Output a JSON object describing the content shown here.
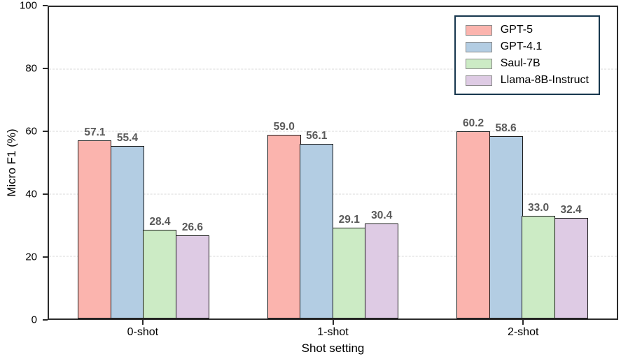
{
  "chart_data": {
    "type": "bar",
    "title": "",
    "xlabel": "Shot setting",
    "ylabel": "Micro F1 (%)",
    "ylim": [
      0,
      100
    ],
    "yticks": [
      0,
      20,
      40,
      60,
      80,
      100
    ],
    "grid": "horizontal-dashed",
    "legend_position": "top-right",
    "bar_value_labels": true,
    "categories": [
      "0-shot",
      "1-shot",
      "2-shot"
    ],
    "series": [
      {
        "name": "GPT-5",
        "color": "#fbb4ae",
        "values": [
          57.1,
          59.0,
          60.2
        ]
      },
      {
        "name": "GPT-4.1",
        "color": "#b3cde3",
        "values": [
          55.4,
          56.1,
          58.6
        ]
      },
      {
        "name": "Saul-7B",
        "color": "#ccebc5",
        "values": [
          28.4,
          29.1,
          33.0
        ]
      },
      {
        "name": "Llama-8B-Instruct",
        "color": "#decbe4",
        "values": [
          26.6,
          30.4,
          32.4
        ]
      }
    ]
  },
  "style": {
    "bar_edge_color": "#1a1a1a",
    "value_label_color": "#595959",
    "grid_color": "#d9d9d9",
    "spine_color": "#2b2b2b",
    "legend_border_color": "#17374e",
    "swatch_border_color": "#8a8a8a",
    "background": "#ffffff"
  }
}
